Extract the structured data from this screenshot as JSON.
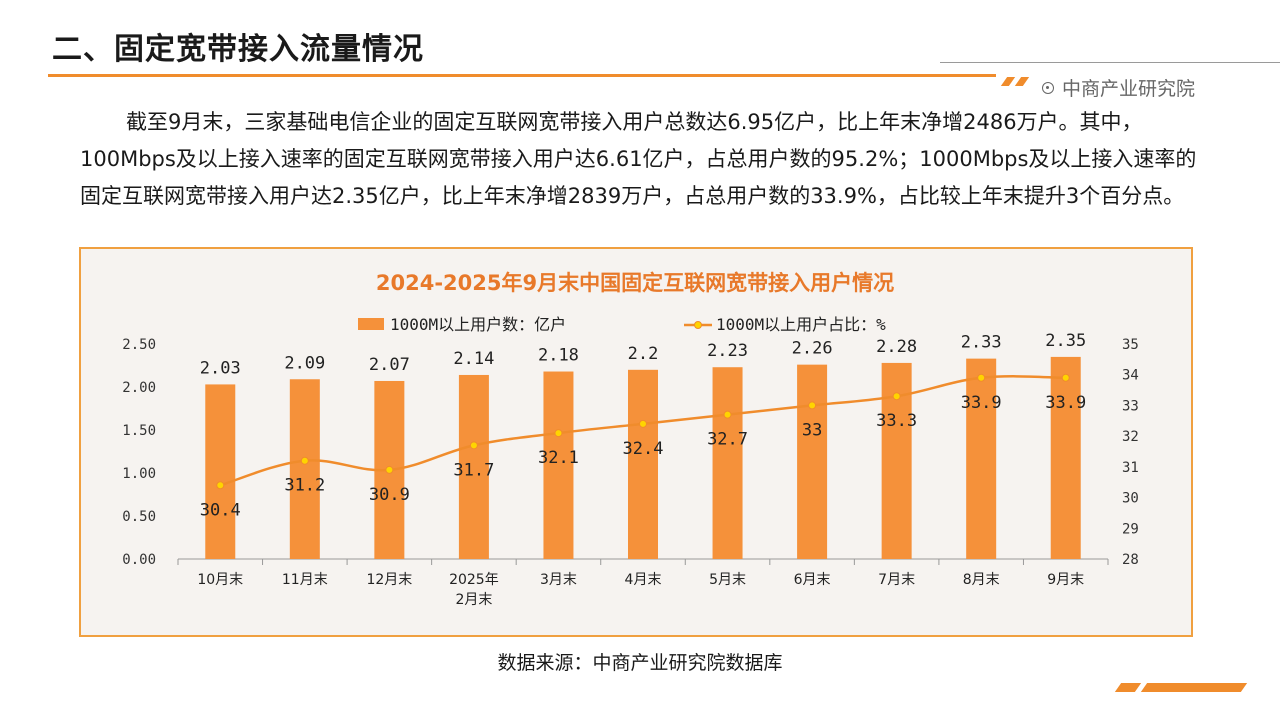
{
  "header": {
    "title": "二、固定宽带接入流量情况",
    "brand": "中商产业研究院"
  },
  "body": {
    "paragraph": "截至9月末，三家基础电信企业的固定互联网宽带接入用户总数达6.95亿户，比上年末净增2486万户。其中，100Mbps及以上接入速率的固定互联网宽带接入用户达6.61亿户，占总用户数的95.2%；1000Mbps及以上接入速率的固定互联网宽带接入用户达2.35亿户，比上年末净增2839万户，占总用户数的33.9%，占比较上年末提升3个百分点。"
  },
  "footer": {
    "source": "数据来源：中商产业研究院数据库"
  },
  "colors": {
    "accent": "#f08c2c",
    "bar": "#f5913a",
    "line": "#f08c2c",
    "marker": "#ffd400",
    "chart_bg": "#f6f3f0",
    "chart_title": "#e8792a"
  },
  "chart_data": {
    "type": "bar",
    "title": "2024-2025年9月末中国固定互联网宽带接入用户情况",
    "categories": [
      "10月末",
      "11月末",
      "12月末",
      "2025年\n2月末",
      "3月末",
      "4月末",
      "5月末",
      "6月末",
      "7月末",
      "8月末",
      "9月末"
    ],
    "series": [
      {
        "name": "1000M以上用户数：亿户",
        "type": "bar",
        "axis": "left",
        "values": [
          2.03,
          2.09,
          2.07,
          2.14,
          2.18,
          2.2,
          2.23,
          2.26,
          2.28,
          2.33,
          2.35
        ],
        "labels": [
          "2.03",
          "2.09",
          "2.07",
          "2.14",
          "2.18",
          "2.2",
          "2.23",
          "2.26",
          "2.28",
          "2.33",
          "2.35"
        ]
      },
      {
        "name": "1000M以上用户占比：%",
        "type": "line",
        "axis": "right",
        "values": [
          30.4,
          31.2,
          30.9,
          31.7,
          32.1,
          32.4,
          32.7,
          33,
          33.3,
          33.9,
          33.9
        ],
        "labels": [
          "30.4",
          "31.2",
          "30.9",
          "31.7",
          "32.1",
          "32.4",
          "32.7",
          "33",
          "33.3",
          "33.9",
          "33.9"
        ]
      }
    ],
    "y_left": {
      "min": 0,
      "max": 2.5,
      "ticks": [
        "0.00",
        "0.50",
        "1.00",
        "1.50",
        "2.00",
        "2.50"
      ]
    },
    "y_right": {
      "min": 28,
      "max": 35,
      "ticks": [
        "28",
        "29",
        "30",
        "31",
        "32",
        "33",
        "34",
        "35"
      ]
    },
    "legend": "top-center",
    "grid": false
  }
}
